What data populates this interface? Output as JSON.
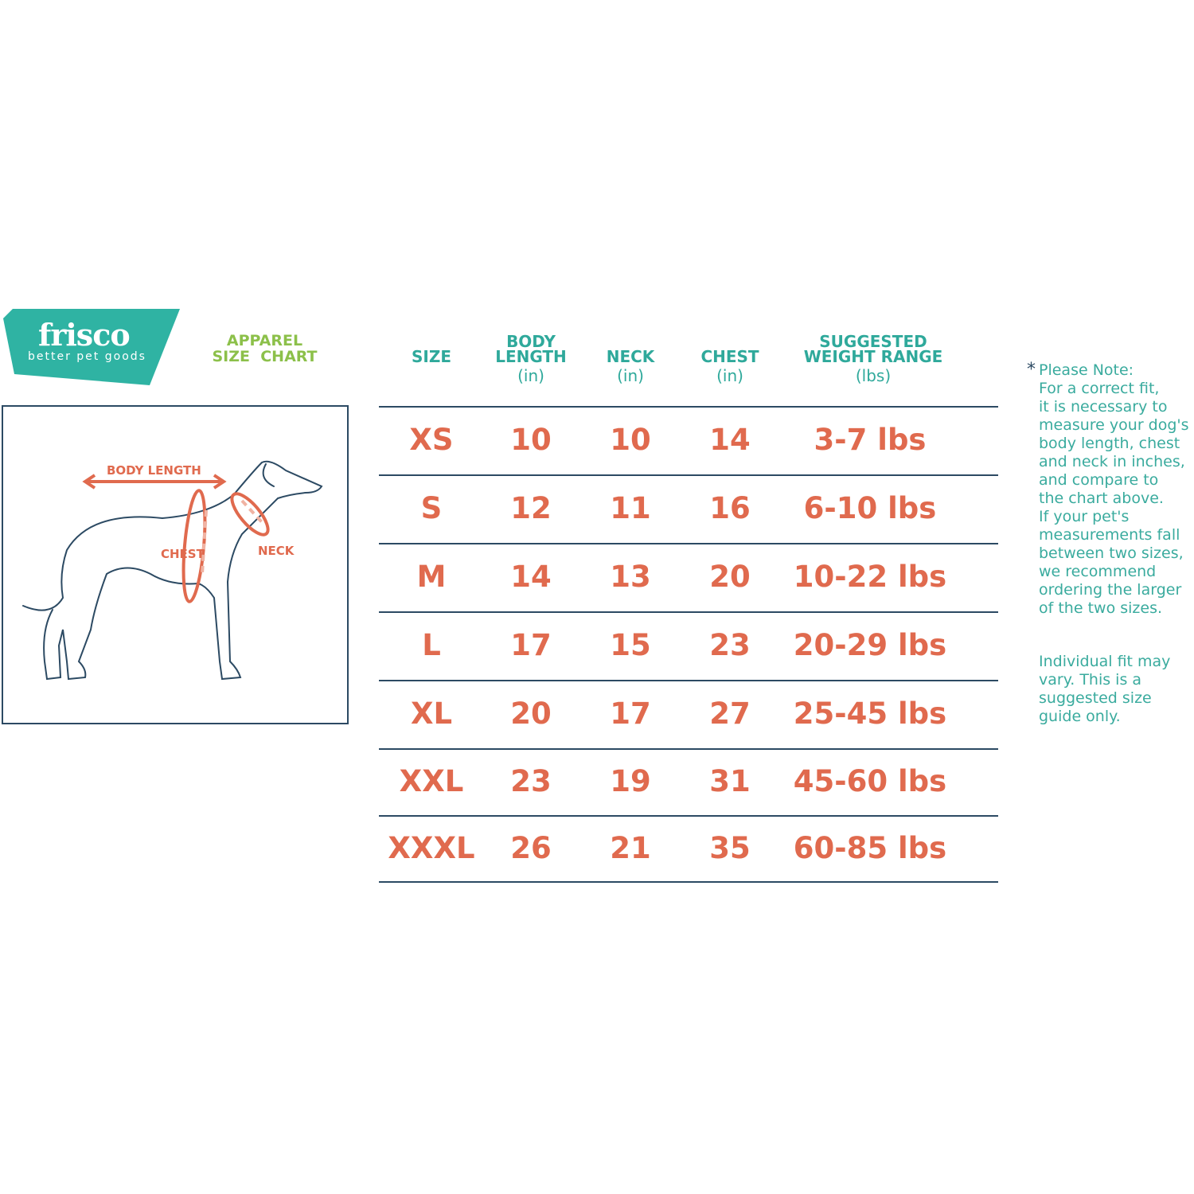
{
  "brand": {
    "name": "frisco",
    "tagline": "better pet goods",
    "color": "#2fb3a3"
  },
  "title": {
    "line1": "APPAREL",
    "line2": "SIZE  CHART",
    "color": "#8cc04a"
  },
  "diagram": {
    "labels": {
      "body_length": "BODY LENGTH",
      "chest": "CHEST",
      "neck": "NECK"
    }
  },
  "table": {
    "headers": [
      {
        "line1": "SIZE",
        "line2": "",
        "unit": ""
      },
      {
        "line1": "BODY",
        "line2": "LENGTH",
        "unit": "(in)"
      },
      {
        "line1": "NECK",
        "line2": "",
        "unit": "(in)"
      },
      {
        "line1": "CHEST",
        "line2": "",
        "unit": "(in)"
      },
      {
        "line1": "SUGGESTED",
        "line2": "WEIGHT RANGE",
        "unit": "(lbs)"
      }
    ],
    "rows": [
      [
        "XS",
        "10",
        "10",
        "14",
        "3-7 lbs"
      ],
      [
        "S",
        "12",
        "11",
        "16",
        "6-10 lbs"
      ],
      [
        "M",
        "14",
        "13",
        "20",
        "10-22 lbs"
      ],
      [
        "L",
        "17",
        "15",
        "23",
        "20-29 lbs"
      ],
      [
        "XL",
        "20",
        "17",
        "27",
        "25-45 lbs"
      ],
      [
        "XXL",
        "23",
        "19",
        "31",
        "45-60 lbs"
      ],
      [
        "XXXL",
        "26",
        "21",
        "35",
        "60-85 lbs"
      ]
    ],
    "value_color": "#e06a4e",
    "header_color": "#2fa99b"
  },
  "note": {
    "asterisk": "*",
    "lines": [
      "Please Note:",
      "For a correct fit,",
      "it is necessary to",
      "measure your dog's",
      "body length, chest",
      "and neck in inches,",
      "and compare to",
      "the chart above.",
      "If your pet's",
      "measurements fall",
      "between two sizes,",
      "we recommend",
      "ordering the larger",
      "of the two sizes."
    ],
    "disclaimer": [
      "Individual fit may",
      "vary. This is a",
      "suggested size",
      "guide only."
    ]
  }
}
